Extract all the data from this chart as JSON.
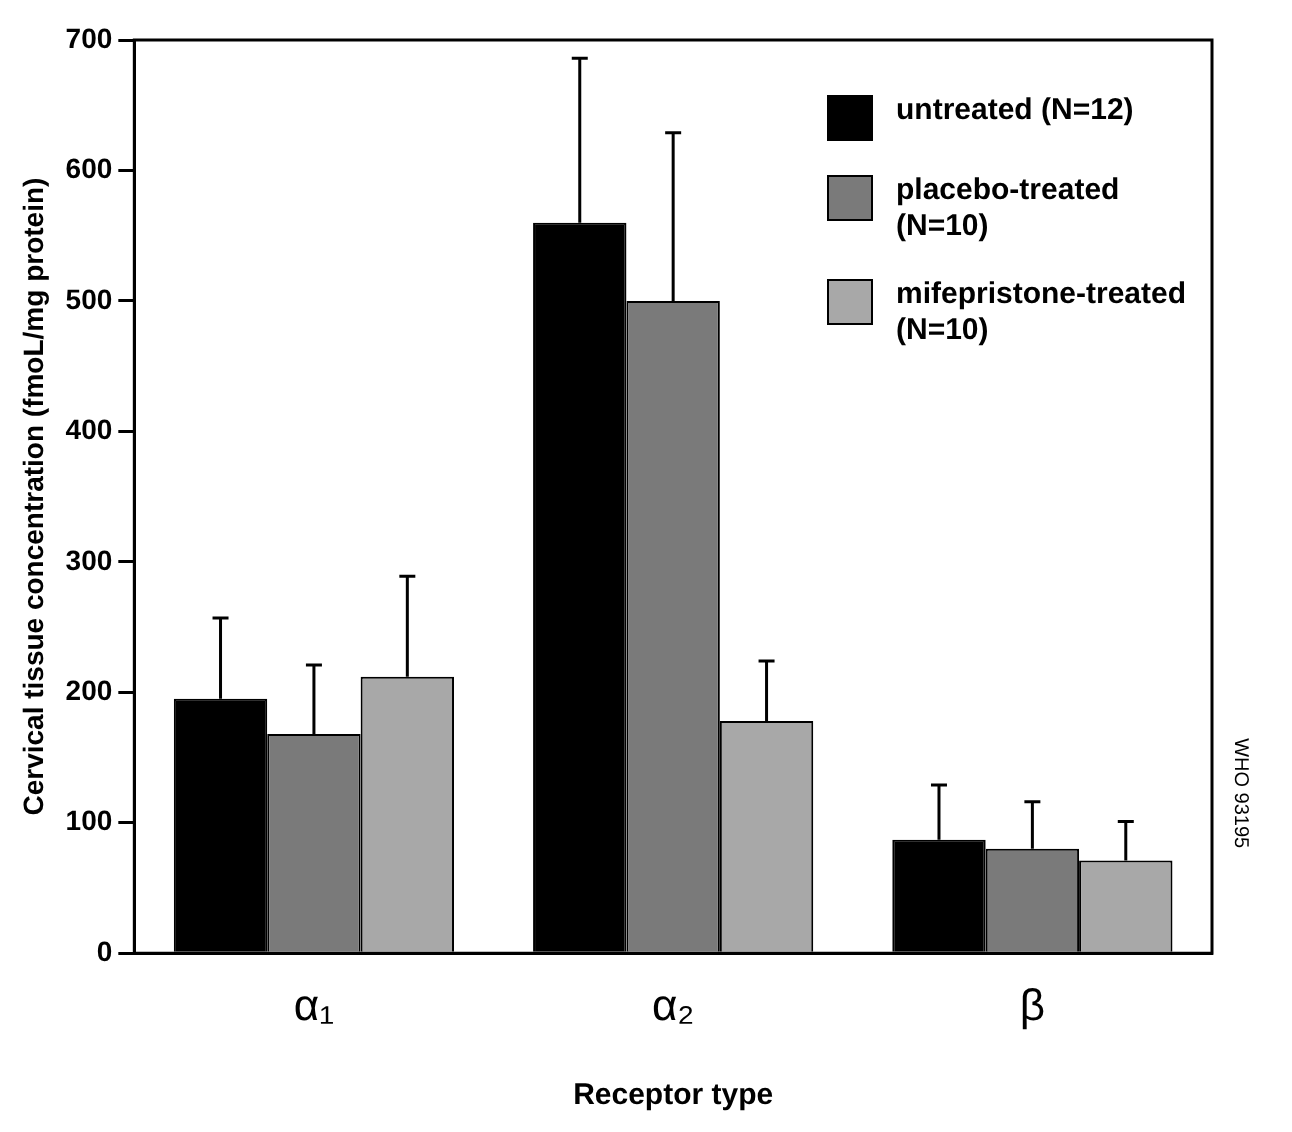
{
  "chart_data": {
    "type": "bar",
    "xlabel": "Receptor type",
    "ylabel": "Cervical tissue concentration (fmoL/mg protein)",
    "categories": [
      "α₁",
      "α₂",
      "β"
    ],
    "series": [
      {
        "name": "untreated (N=12)",
        "color": "#000000",
        "values": [
          195,
          560,
          87
        ],
        "errors": [
          [
            195,
            257
          ],
          [
            560,
            686
          ],
          [
            87,
            129
          ]
        ]
      },
      {
        "name": "placebo-treated (N=10)",
        "color": "#7a7a7a",
        "values": [
          168,
          500,
          80
        ],
        "errors": [
          [
            168,
            221
          ],
          [
            500,
            629
          ],
          [
            80,
            116
          ]
        ]
      },
      {
        "name": "mifepristone-treated (N=10)",
        "color": "#a8a8a8",
        "values": [
          212,
          178,
          71
        ],
        "errors": [
          [
            212,
            289
          ],
          [
            178,
            224
          ],
          [
            71,
            101
          ]
        ]
      }
    ],
    "ylim": [
      0,
      700
    ],
    "yticks": [
      0,
      100,
      200,
      300,
      400,
      500,
      600,
      700
    ],
    "grid": false,
    "legend": "top right",
    "annotations": [
      "WHO 93195"
    ]
  }
}
